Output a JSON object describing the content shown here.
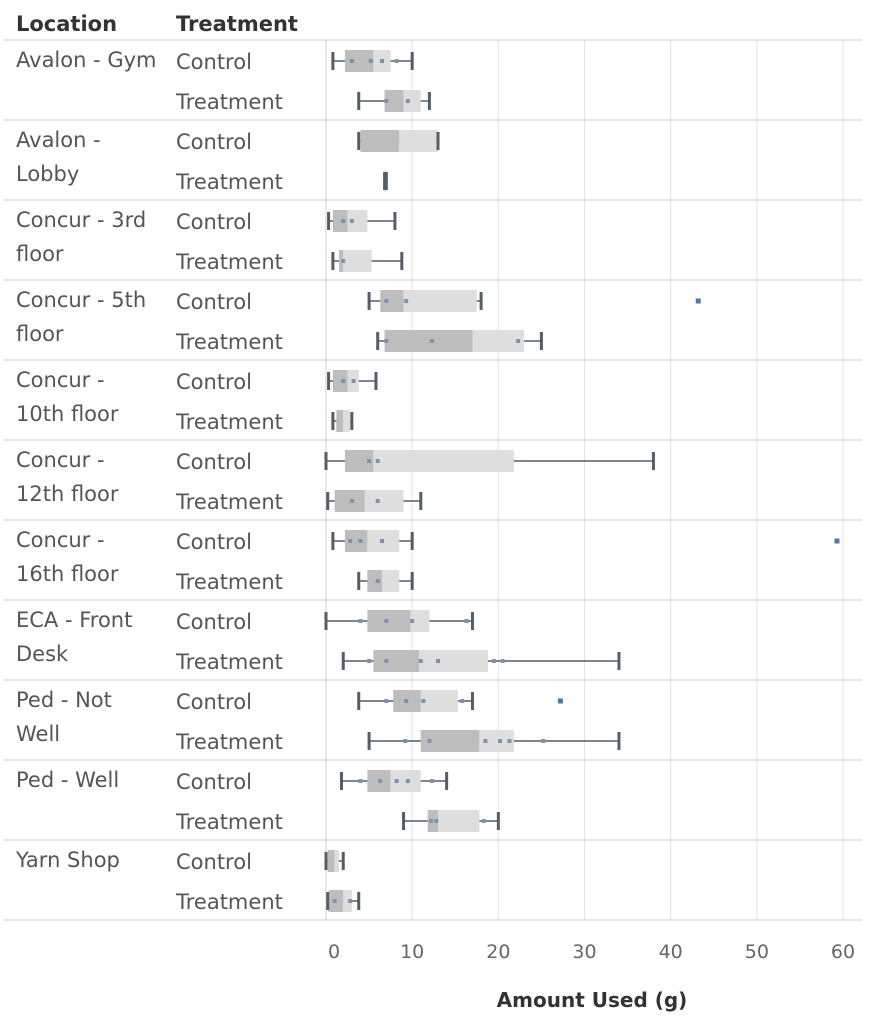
{
  "chart_data": {
    "type": "boxplot",
    "header": {
      "location": "Location",
      "treatment": "Treatment"
    },
    "xlabel": "Amount Used (g)",
    "xlim": [
      0,
      60
    ],
    "xticks": [
      0,
      10,
      20,
      30,
      40,
      50,
      60
    ],
    "grid": true,
    "colors": {
      "box_lower": "#bdbdbd",
      "box_upper": "#dedede",
      "whisker": "#555d66",
      "point": "#7b93ad",
      "outlier": "#4e79a7",
      "gridline": "#e4e4e4",
      "separator": "#cccccc"
    },
    "groups": [
      {
        "location": [
          "Avalon - Gym"
        ],
        "rows": [
          {
            "treatment": "Control",
            "min": 0.8,
            "q1": 2.2,
            "median": 5.5,
            "q3": 7.5,
            "max": 10.0,
            "points": [
              3.0,
              5.2,
              6.5,
              8.2
            ],
            "outliers": []
          },
          {
            "treatment": "Treatment",
            "min": 3.8,
            "q1": 6.8,
            "median": 9.0,
            "q3": 11.0,
            "max": 12.0,
            "points": [
              7.0,
              9.5
            ],
            "outliers": []
          }
        ]
      },
      {
        "location": [
          "Avalon -",
          "Lobby"
        ],
        "rows": [
          {
            "treatment": "Control",
            "min": 3.8,
            "q1": 4.0,
            "median": 8.5,
            "q3": 13.0,
            "max": 13.0,
            "points": [],
            "outliers": []
          },
          {
            "treatment": "Treatment",
            "min": 6.8,
            "q1": 6.8,
            "median": 6.8,
            "q3": 7.0,
            "max": 7.0,
            "points": [],
            "outliers": []
          }
        ]
      },
      {
        "location": [
          "Concur - 3rd",
          "floor"
        ],
        "rows": [
          {
            "treatment": "Control",
            "min": 0.3,
            "q1": 0.8,
            "median": 2.5,
            "q3": 4.8,
            "max": 8.0,
            "points": [
              2.0,
              3.0
            ],
            "outliers": []
          },
          {
            "treatment": "Treatment",
            "min": 0.8,
            "q1": 1.5,
            "median": 2.0,
            "q3": 5.3,
            "max": 8.8,
            "points": [
              2.0
            ],
            "outliers": []
          }
        ]
      },
      {
        "location": [
          "Concur - 5th",
          "floor"
        ],
        "rows": [
          {
            "treatment": "Control",
            "min": 5.0,
            "q1": 6.3,
            "median": 9.0,
            "q3": 17.5,
            "max": 18.0,
            "points": [
              7.0,
              9.3
            ],
            "outliers": [
              43.2
            ]
          },
          {
            "treatment": "Treatment",
            "min": 6.0,
            "q1": 6.8,
            "median": 17.0,
            "q3": 23.0,
            "max": 25.0,
            "points": [
              7.0,
              12.3,
              22.3
            ],
            "outliers": []
          }
        ]
      },
      {
        "location": [
          "Concur -",
          "10th floor"
        ],
        "rows": [
          {
            "treatment": "Control",
            "min": 0.3,
            "q1": 0.8,
            "median": 2.5,
            "q3": 3.8,
            "max": 5.8,
            "points": [
              2.0,
              3.2
            ],
            "outliers": []
          },
          {
            "treatment": "Treatment",
            "min": 0.8,
            "q1": 1.2,
            "median": 2.0,
            "q3": 2.8,
            "max": 3.0,
            "points": [],
            "outliers": []
          }
        ]
      },
      {
        "location": [
          "Concur -",
          "12th floor"
        ],
        "rows": [
          {
            "treatment": "Control",
            "min": 0.0,
            "q1": 2.2,
            "median": 5.5,
            "q3": 21.8,
            "max": 38.0,
            "points": [
              5.0,
              6.0
            ],
            "outliers": []
          },
          {
            "treatment": "Treatment",
            "min": 0.2,
            "q1": 1.0,
            "median": 4.5,
            "q3": 9.0,
            "max": 11.0,
            "points": [
              3.0,
              6.0
            ],
            "outliers": []
          }
        ]
      },
      {
        "location": [
          "Concur -",
          "16th floor"
        ],
        "rows": [
          {
            "treatment": "Control",
            "min": 0.8,
            "q1": 2.2,
            "median": 4.8,
            "q3": 8.5,
            "max": 10.0,
            "points": [
              2.8,
              4.0,
              6.5
            ],
            "outliers": [
              59.3
            ]
          },
          {
            "treatment": "Treatment",
            "min": 3.8,
            "q1": 4.8,
            "median": 6.5,
            "q3": 8.5,
            "max": 10.0,
            "points": [
              6.0
            ],
            "outliers": []
          }
        ]
      },
      {
        "location": [
          "ECA - Front",
          "Desk"
        ],
        "rows": [
          {
            "treatment": "Control",
            "min": 0.0,
            "q1": 4.8,
            "median": 9.8,
            "q3": 12.0,
            "max": 17.0,
            "points": [
              4.0,
              7.0,
              10.0,
              16.3
            ],
            "outliers": []
          },
          {
            "treatment": "Treatment",
            "min": 2.0,
            "q1": 5.5,
            "median": 10.8,
            "q3": 18.8,
            "max": 34.0,
            "points": [
              5.0,
              7.0,
              11.0,
              13.0,
              19.5,
              20.5
            ],
            "outliers": []
          }
        ]
      },
      {
        "location": [
          "Ped - Not",
          "Well"
        ],
        "rows": [
          {
            "treatment": "Control",
            "min": 3.8,
            "q1": 7.8,
            "median": 11.0,
            "q3": 15.3,
            "max": 17.0,
            "points": [
              7.0,
              9.3,
              11.3,
              15.8
            ],
            "outliers": [
              27.2
            ]
          },
          {
            "treatment": "Treatment",
            "min": 5.0,
            "q1": 11.0,
            "median": 17.8,
            "q3": 21.8,
            "max": 34.0,
            "points": [
              9.2,
              12.0,
              18.5,
              20.2,
              21.3,
              25.2
            ],
            "outliers": []
          }
        ]
      },
      {
        "location": [
          "Ped - Well"
        ],
        "rows": [
          {
            "treatment": "Control",
            "min": 1.8,
            "q1": 4.8,
            "median": 7.5,
            "q3": 11.0,
            "max": 14.0,
            "points": [
              4.0,
              6.3,
              8.2,
              9.5,
              12.3
            ],
            "outliers": []
          },
          {
            "treatment": "Treatment",
            "min": 9.0,
            "q1": 11.8,
            "median": 13.0,
            "q3": 17.8,
            "max": 20.0,
            "points": [
              12.2,
              12.8,
              18.3
            ],
            "outliers": []
          }
        ]
      },
      {
        "location": [
          "Yarn Shop"
        ],
        "rows": [
          {
            "treatment": "Control",
            "min": 0.0,
            "q1": 0.2,
            "median": 1.0,
            "q3": 1.5,
            "max": 2.0,
            "points": [],
            "outliers": []
          },
          {
            "treatment": "Treatment",
            "min": 0.2,
            "q1": 0.3,
            "median": 2.0,
            "q3": 3.0,
            "max": 3.8,
            "points": [
              1.0,
              2.8
            ],
            "outliers": []
          }
        ]
      }
    ]
  }
}
